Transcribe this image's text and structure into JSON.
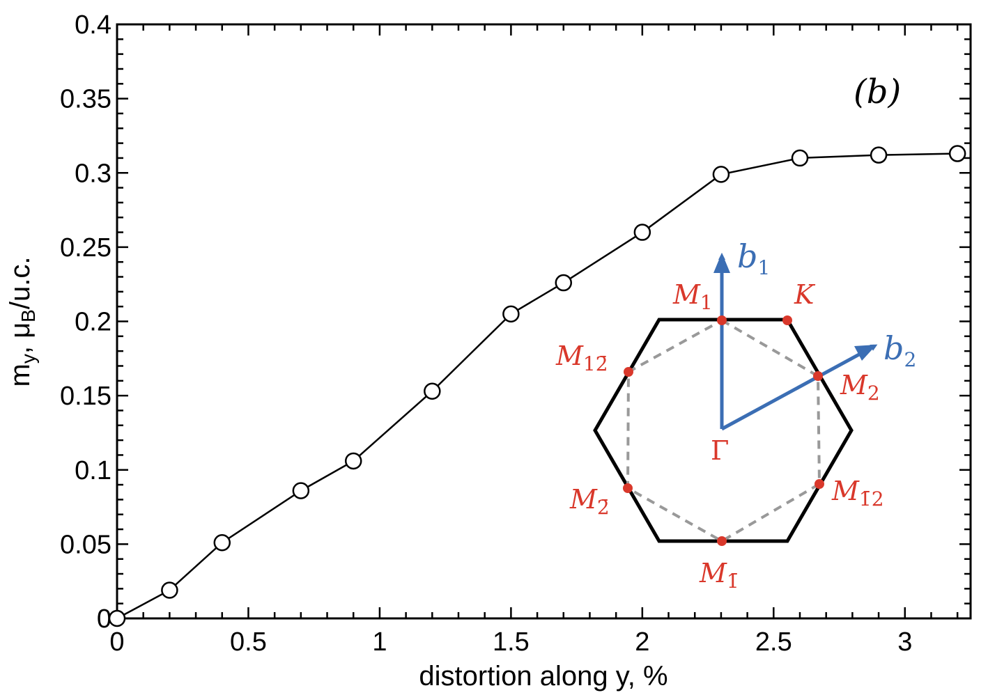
{
  "chart_data": {
    "type": "line",
    "title": "",
    "panel_label": "(b)",
    "xlabel": "distortion along y, %",
    "ylabel": {
      "main": "m",
      "sub_y": "y",
      "mid": ", μ",
      "sub_b": "B",
      "tail": "/u.c."
    },
    "xlim": [
      0,
      3.25
    ],
    "ylim": [
      0,
      0.4
    ],
    "xticks": [
      0,
      0.5,
      1,
      1.5,
      2,
      2.5,
      3
    ],
    "xtick_labels": [
      "0",
      "0.5",
      "1",
      "1.5",
      "2",
      "2.5",
      "3"
    ],
    "yticks": [
      0,
      0.05,
      0.1,
      0.15,
      0.2,
      0.25,
      0.3,
      0.35,
      0.4
    ],
    "ytick_labels": [
      "0",
      "0.05",
      "0.1",
      "0.15",
      "0.2",
      "0.25",
      "0.3",
      "0.35",
      "0.4"
    ],
    "grid": false,
    "marker": "open-circle",
    "line_color": "#000000",
    "x": [
      0,
      0.2,
      0.4,
      0.7,
      0.9,
      1.2,
      1.5,
      1.7,
      2.0,
      2.3,
      2.6,
      2.9,
      3.2
    ],
    "y": [
      0,
      0.019,
      0.051,
      0.086,
      0.106,
      0.153,
      0.205,
      0.226,
      0.26,
      0.299,
      0.31,
      0.312,
      0.313
    ]
  },
  "inset": {
    "colors": {
      "hexagon": "#000000",
      "dashed": "#999999",
      "points": "#d9382b",
      "vectors": "#3b6eb4"
    },
    "labels": {
      "gamma": "Γ",
      "k": "K",
      "m1": {
        "base": "M",
        "sub": "1"
      },
      "m2": {
        "base": "M",
        "sub": "2"
      },
      "m12bar": {
        "base": "M",
        "sub": "12̄"
      },
      "m2bar": {
        "base": "M",
        "sub": "2̄"
      },
      "m1bar": {
        "base": "M",
        "sub": "1̄"
      },
      "m1bar2": {
        "base": "M",
        "sub": "1̄2"
      },
      "b1": {
        "base": "b",
        "sub": "1"
      },
      "b2": {
        "base": "b",
        "sub": "2"
      }
    }
  }
}
